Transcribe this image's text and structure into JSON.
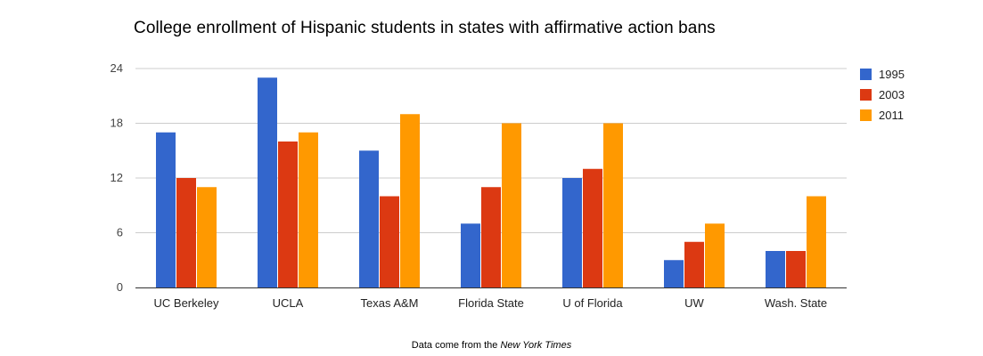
{
  "chart_data": {
    "type": "bar",
    "title": "College enrollment of Hispanic students in states with affirmative action bans",
    "xlabel": "",
    "ylabel": "",
    "categories": [
      "UC Berkeley",
      "UCLA",
      "Texas A&M",
      "Florida State",
      "U of Florida",
      "UW",
      "Wash. State"
    ],
    "series": [
      {
        "name": "1995",
        "color": "#3366cc",
        "values": [
          17,
          23,
          15,
          7,
          12,
          3,
          4
        ]
      },
      {
        "name": "2003",
        "color": "#dc3912",
        "values": [
          12,
          16,
          10,
          11,
          13,
          5,
          4
        ]
      },
      {
        "name": "2011",
        "color": "#ff9900",
        "values": [
          11,
          17,
          19,
          18,
          18,
          7,
          10
        ]
      }
    ],
    "ylim": [
      0,
      24
    ],
    "yticks": [
      0,
      6,
      12,
      18,
      24
    ],
    "grid": true,
    "legend_position": "right"
  },
  "footer": {
    "source_prefix": "Data come from the ",
    "source_publication": "New York Times"
  }
}
